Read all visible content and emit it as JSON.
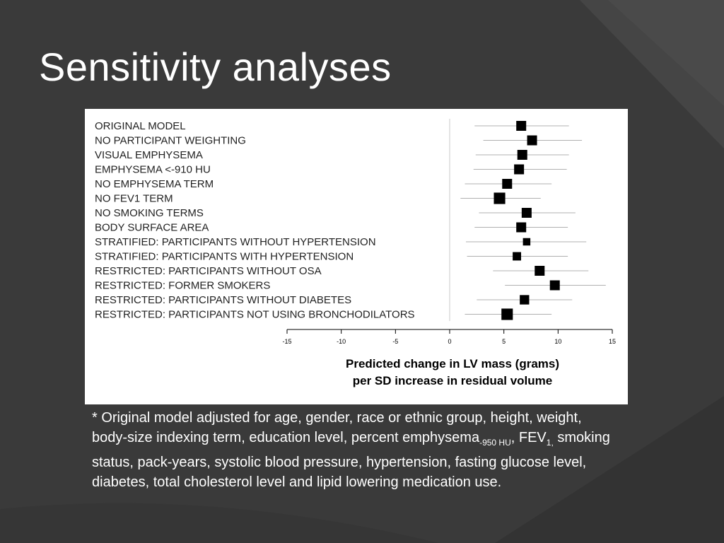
{
  "slide": {
    "title": "Sensitivity analyses"
  },
  "chart_data": {
    "type": "forest",
    "categories": [
      "ORIGINAL MODEL",
      "NO PARTICIPANT WEIGHTING",
      "VISUAL EMPHYSEMA",
      "EMPHYSEMA <-910 HU",
      "NO EMPHYSEMA TERM",
      "NO FEV1 TERM",
      "NO SMOKING TERMS",
      "BODY SURFACE AREA",
      "STRATIFIED: PARTICIPANTS WITHOUT HYPERTENSION",
      "STRATIFIED: PARTICIPANTS WITH HYPERTENSION",
      "RESTRICTED: PARTICIPANTS WITHOUT OSA",
      "RESTRICTED: FORMER SMOKERS",
      "RESTRICTED: PARTICIPANTS WITHOUT DIABETES",
      "RESTRICTED: PARTICIPANTS NOT USING BRONCHODILATORS"
    ],
    "estimates": [
      6.6,
      7.6,
      6.7,
      6.4,
      5.3,
      4.6,
      7.1,
      6.6,
      7.1,
      6.2,
      8.3,
      9.7,
      6.9,
      5.3
    ],
    "ci_lower": [
      2.3,
      3.1,
      2.4,
      2.2,
      1.4,
      1.0,
      2.7,
      2.3,
      1.5,
      1.6,
      4.0,
      5.1,
      2.5,
      1.4
    ],
    "ci_upper": [
      11.0,
      12.2,
      11.0,
      10.8,
      9.4,
      8.4,
      11.6,
      10.9,
      12.6,
      10.9,
      12.8,
      14.4,
      11.3,
      9.4
    ],
    "marker_weight": [
      1.0,
      1.0,
      1.0,
      1.0,
      1.0,
      1.15,
      1.0,
      1.0,
      0.75,
      0.85,
      1.0,
      1.0,
      0.95,
      1.15
    ],
    "xlim": [
      -15,
      15
    ],
    "xticks": [
      -15,
      -10,
      -5,
      0,
      5,
      10,
      15
    ],
    "xlabel_line1": "Predicted change in LV mass (grams)",
    "xlabel_line2": "per SD increase in residual volume",
    "reference_line": 0,
    "marker_color": "#000000",
    "ci_color": "#b0b0b0"
  },
  "footnote": {
    "text1": "* Original model adjusted for age, gender, race or ethnic group, height, weight, body-size indexing term, education level, percent emphysema",
    "sub1": "-950 HU",
    "text2": ", FEV",
    "sub2": "1,",
    "text3": " smoking status, pack-years, systolic blood pressure, hypertension, fasting glucose level, diabetes, total cholesterol level and lipid lowering medication use."
  }
}
